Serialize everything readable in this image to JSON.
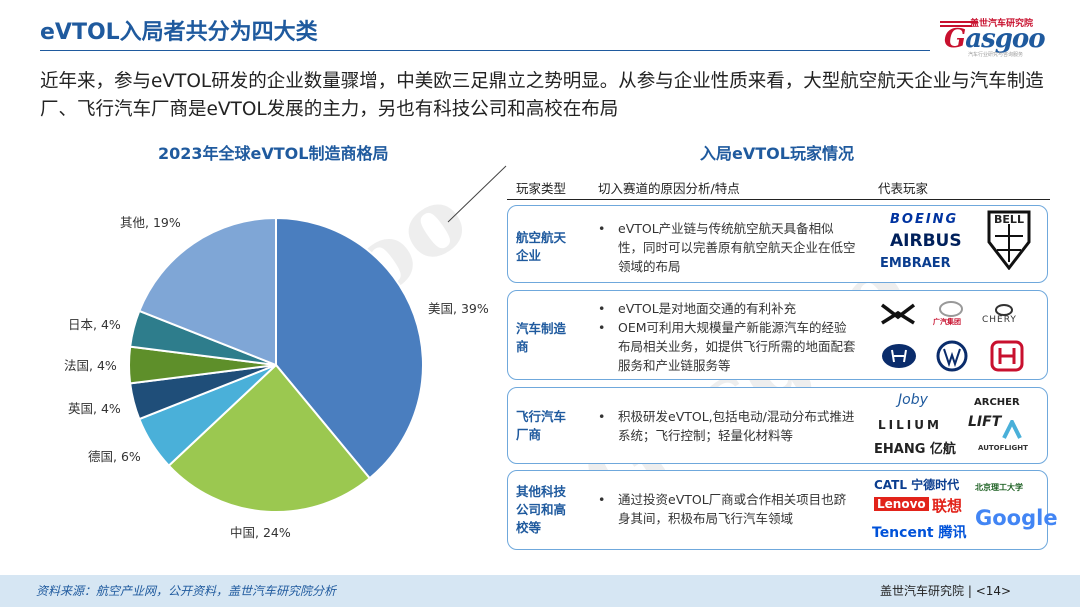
{
  "header": {
    "title": "eVTOL入局者共分为四大类",
    "logo_sub": "盖世汽车研究院",
    "logo_main_g": "G",
    "logo_main_rest": "asgoo",
    "logo_tag": "汽车行业研究与咨询服务"
  },
  "intro": "近年来，参与eVTOL研发的企业数量骤增，中美欧三足鼎立之势明显。从参与企业性质来看，大型航空航天企业与汽车制造厂、飞行汽车厂商是eVTOL发展的主力，另也有科技公司和高校在布局",
  "chart_data": {
    "type": "pie",
    "title": "2023年全球eVTOL制造商格局",
    "slices": [
      {
        "label": "美国, 39%",
        "value": 39,
        "color": "#4a7ebf"
      },
      {
        "label": "中国, 24%",
        "value": 24,
        "color": "#9bc850"
      },
      {
        "label": "德国, 6%",
        "value": 6,
        "color": "#4ab0d9"
      },
      {
        "label": "英国, 4%",
        "value": 4,
        "color": "#1f4e79"
      },
      {
        "label": "法国, 4%",
        "value": 4,
        "color": "#5e8f2a"
      },
      {
        "label": "日本, 4%",
        "value": 4,
        "color": "#2e7d8c"
      },
      {
        "label": "其他, 19%",
        "value": 19,
        "color": "#7fa6d6"
      }
    ]
  },
  "players": {
    "title": "入局eVTOL玩家情况",
    "headers": [
      "玩家类型",
      "切入赛道的原因分析/特点",
      "代表玩家"
    ],
    "rows": [
      {
        "type": "航空航天企业",
        "bullets": [
          "eVTOL产业链与传统航空航天具备相似性，同时可以完善原有航空航天企业在低空领域的布局"
        ],
        "logos": [
          "BOEING",
          "AIRBUS",
          "EMBRAER",
          "BELL"
        ]
      },
      {
        "type": "汽车制造商",
        "bullets": [
          "eVTOL是对地面交通的有利补充",
          "OEM可利用大规模量产新能源汽车的经验布局相关业务，如提供飞行所需的地面配套服务和产业链服务等"
        ],
        "logos": [
          "CHERY",
          "广汽集团"
        ]
      },
      {
        "type": "飞行汽车厂商",
        "bullets": [
          "积极研发eVTOL,包括电动/混动分布式推进系统；飞行控制；轻量化材料等"
        ],
        "logos": [
          "Joby",
          "ARCHER",
          "LILIUM",
          "LIFT",
          "EHANG 亿航",
          "AUTOFLIGHT"
        ]
      },
      {
        "type": "其他科技公司和高校等",
        "bullets": [
          "通过投资eVTOL厂商或合作相关项目也跻身其间，积极布局飞行汽车领域"
        ],
        "logos": [
          "CATL 宁德时代",
          "Lenovo",
          "联想",
          "Tencent 腾讯",
          "Google",
          "北京理工大学"
        ]
      }
    ]
  },
  "footer": {
    "source": "资料来源：航空产业网，公开资料，盖世汽车研究院分析",
    "org": "盖世汽车研究院",
    "page": "<14>"
  },
  "colors": {
    "accent": "#1f5a9e",
    "brand_red": "#c8102e",
    "footer_bg": "#d6e6f3"
  }
}
